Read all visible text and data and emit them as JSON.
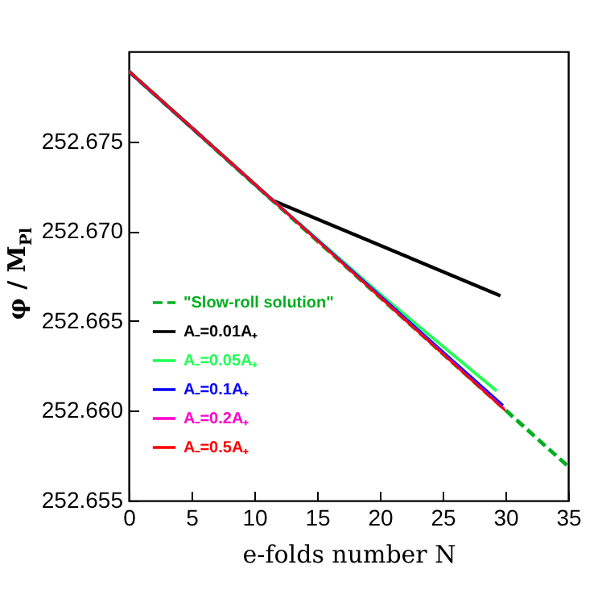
{
  "chart_data": {
    "type": "line",
    "xlabel": "e-folds number N",
    "ylabel": "φ / M$_{Pl}$",
    "xlim": [
      0,
      35
    ],
    "ylim": [
      252.655,
      252.68
    ],
    "xticks": [
      0,
      5,
      10,
      15,
      20,
      25,
      30,
      35
    ],
    "yticks": [
      {
        "value": 252.655,
        "label": "252.655"
      },
      {
        "value": 252.66,
        "label": "252.660"
      },
      {
        "value": 252.665,
        "label": "252.665"
      },
      {
        "value": 252.67,
        "label": "252.670"
      },
      {
        "value": 252.675,
        "label": "252.675"
      }
    ],
    "grid": false,
    "legend": "left",
    "marker": "none",
    "series": [
      {
        "name": "\"Slow-roll solution\"",
        "color": "#00b020",
        "line_style": "dashed",
        "x": [
          0,
          35
        ],
        "values": [
          252.6789,
          252.6569
        ]
      },
      {
        "name": "A₋=0.01A₊",
        "color": "#000000",
        "line_style": "solid",
        "x": [
          0,
          11.5,
          29.6
        ],
        "values": [
          252.6789,
          252.6717,
          252.6664
        ]
      },
      {
        "name": "A₋=0.05A₊",
        "color": "#22ff55",
        "line_style": "solid",
        "x": [
          0,
          11.5,
          20,
          29.3
        ],
        "values": [
          252.6789,
          252.6717,
          252.6665,
          252.6611
        ]
      },
      {
        "name": "A₋=0.1A₊",
        "color": "#0000ff",
        "line_style": "solid",
        "x": [
          0,
          11.5,
          29.8
        ],
        "values": [
          252.6789,
          252.6717,
          252.6603
        ]
      },
      {
        "name": "A₋=0.2A₊",
        "color": "#ff00cc",
        "line_style": "solid",
        "x": [
          0,
          11.5,
          29.9
        ],
        "values": [
          252.6789,
          252.6717,
          252.6601
        ]
      },
      {
        "name": "A₋=0.5A₊",
        "color": "#ff0000",
        "line_style": "solid",
        "x": [
          0,
          11.5,
          30
        ],
        "values": [
          252.6789,
          252.6717,
          252.66
        ]
      }
    ]
  }
}
